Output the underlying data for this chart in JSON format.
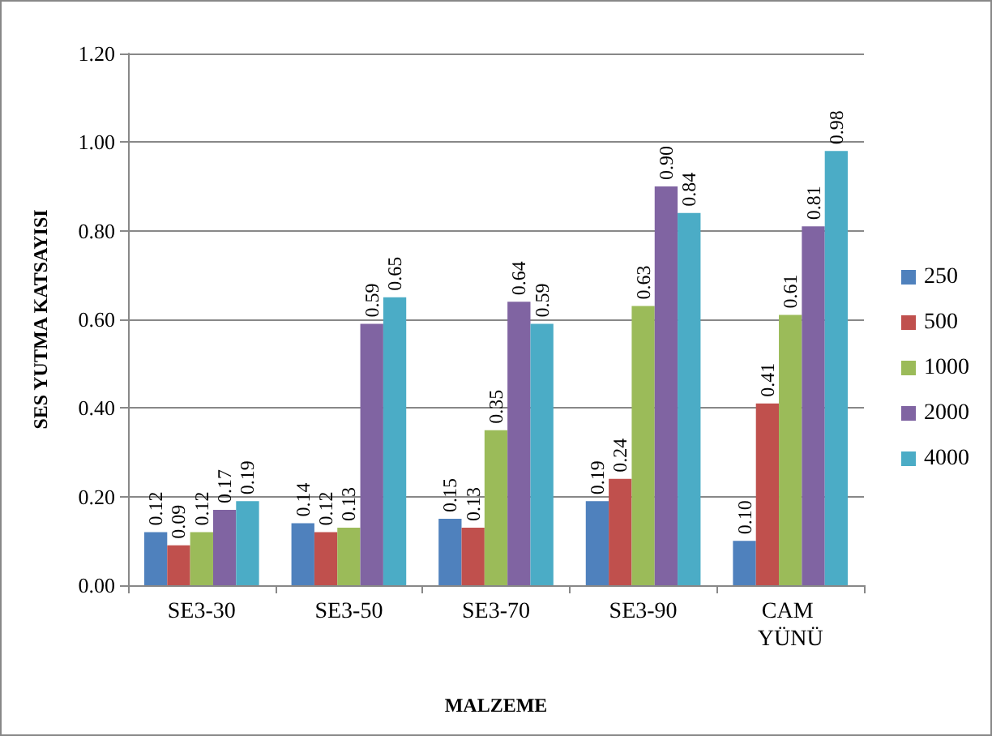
{
  "chart_data": {
    "type": "bar",
    "xlabel": "MALZEME",
    "ylabel": "SES YUTMA KATSAYISI",
    "categories": [
      "SE3-30",
      "SE3-50",
      "SE3-70",
      "SE3-90",
      "CAM YÜNÜ"
    ],
    "series": [
      {
        "name": "250",
        "color": "#4f81bd",
        "values": [
          0.12,
          0.14,
          0.15,
          0.19,
          0.1
        ],
        "value_labels": [
          "0.12",
          "0.14",
          "0.15",
          "0.19",
          "0.10"
        ]
      },
      {
        "name": "500",
        "color": "#c0504d",
        "values": [
          0.09,
          0.12,
          0.13,
          0.24,
          0.41
        ],
        "value_labels": [
          "0.09",
          "0.12",
          "0.13",
          "0.24",
          "0.41"
        ]
      },
      {
        "name": "1000",
        "color": "#9bbb59",
        "values": [
          0.12,
          0.13,
          0.35,
          0.63,
          0.61
        ],
        "value_labels": [
          "0.12",
          "0.13",
          "0.35",
          "0.63",
          "0.61"
        ]
      },
      {
        "name": "2000",
        "color": "#8064a2",
        "values": [
          0.17,
          0.59,
          0.64,
          0.9,
          0.81
        ],
        "value_labels": [
          "0.17",
          "0.59",
          "0.64",
          "0.90",
          "0.81"
        ]
      },
      {
        "name": "4000",
        "color": "#4bacc6",
        "values": [
          0.19,
          0.65,
          0.59,
          0.84,
          0.98
        ],
        "value_labels": [
          "0.19",
          "0.65",
          "0.59",
          "0.84",
          "0.98"
        ]
      }
    ],
    "ylim": [
      0,
      1.2
    ],
    "yticks": [
      {
        "value": 0,
        "label": "0.00"
      },
      {
        "value": 0.2,
        "label": "0.20"
      },
      {
        "value": 0.4,
        "label": "0.40"
      },
      {
        "value": 0.6,
        "label": "0.60"
      },
      {
        "value": 0.8,
        "label": "0.80"
      },
      {
        "value": 1.0,
        "label": "1.00"
      },
      {
        "value": 1.2,
        "label": "1.20"
      }
    ],
    "grid": "y",
    "legend": "right"
  }
}
